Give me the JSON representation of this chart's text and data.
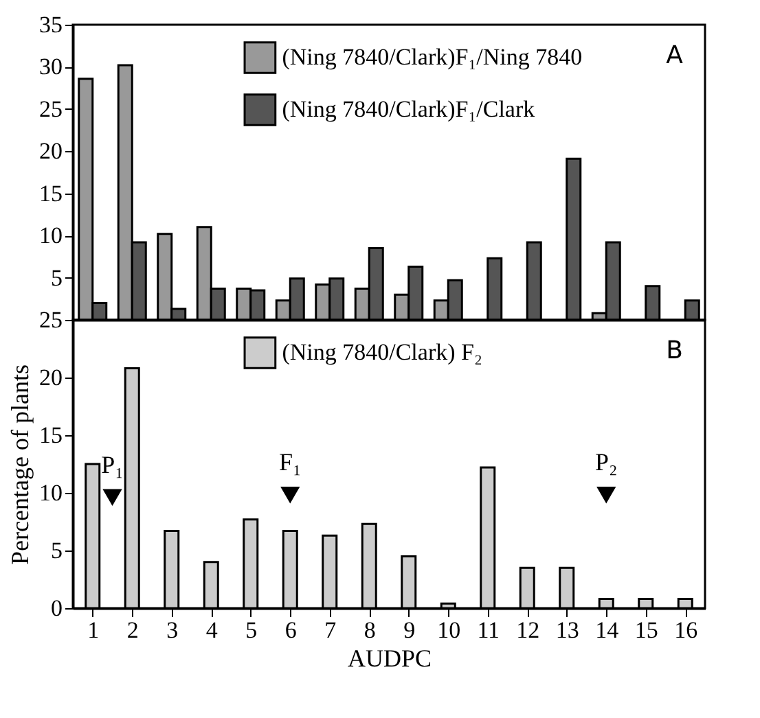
{
  "chart_data": [
    {
      "type": "bar",
      "categories": [
        null,
        null,
        null,
        null,
        null,
        null,
        null,
        null,
        null,
        null,
        null,
        null,
        null,
        null,
        null,
        null
      ],
      "ylim": [
        0,
        35
      ],
      "yticks": [
        5,
        10,
        15,
        20,
        25,
        30,
        35
      ],
      "tick_labels": "y",
      "legend": "top",
      "grid": false,
      "annotations": [
        "A"
      ],
      "series": [
        {
          "name": "(Ning 7840/Clark)F₁/Ning 7840",
          "color": "#999999",
          "values": [
            28.6,
            30.2,
            10.2,
            11.0,
            3.7,
            2.3,
            4.2,
            3.7,
            3.0,
            2.3,
            null,
            null,
            null,
            0.8,
            null,
            null
          ]
        },
        {
          "name": "(Ning 7840/Clark)F₁/Clark",
          "color": "#555555",
          "values": [
            2.0,
            9.2,
            1.3,
            3.7,
            3.5,
            4.9,
            4.9,
            8.5,
            6.3,
            4.7,
            7.3,
            9.2,
            19.1,
            9.2,
            4.0,
            2.3
          ]
        }
      ]
    },
    {
      "type": "bar",
      "x": [
        1,
        2,
        3,
        4,
        5,
        6,
        7,
        8,
        9,
        10,
        11,
        12,
        13,
        14,
        15,
        16
      ],
      "xlim": [
        0.5,
        16.5
      ],
      "xticks": [
        1,
        2,
        3,
        4,
        5,
        6,
        7,
        8,
        9,
        10,
        11,
        12,
        13,
        14,
        15,
        16
      ],
      "ylim": [
        0,
        25
      ],
      "yticks": [
        0,
        5,
        10,
        15,
        20,
        25
      ],
      "xlabel": "AUDPC",
      "ylabel": "Percentage of plants",
      "legend": "top",
      "grid": false,
      "annotations": [
        "B"
      ],
      "series": [
        {
          "name": "(Ning 7840/Clark) F₂",
          "color": "#cccccc",
          "values": [
            12.5,
            20.8,
            6.7,
            4.0,
            7.7,
            6.7,
            6.3,
            7.3,
            4.5,
            0.4,
            12.2,
            3.5,
            3.5,
            0.8,
            0.8,
            0.8
          ]
        },
        {
          "type": "scatter",
          "x": [
            1.5,
            6,
            14
          ],
          "values": [
            9.6,
            9.8,
            9.8
          ],
          "marker": "triangle",
          "color": "#000000",
          "value_labels": [
            "P₁",
            "F₁",
            "P₂"
          ]
        }
      ]
    }
  ]
}
